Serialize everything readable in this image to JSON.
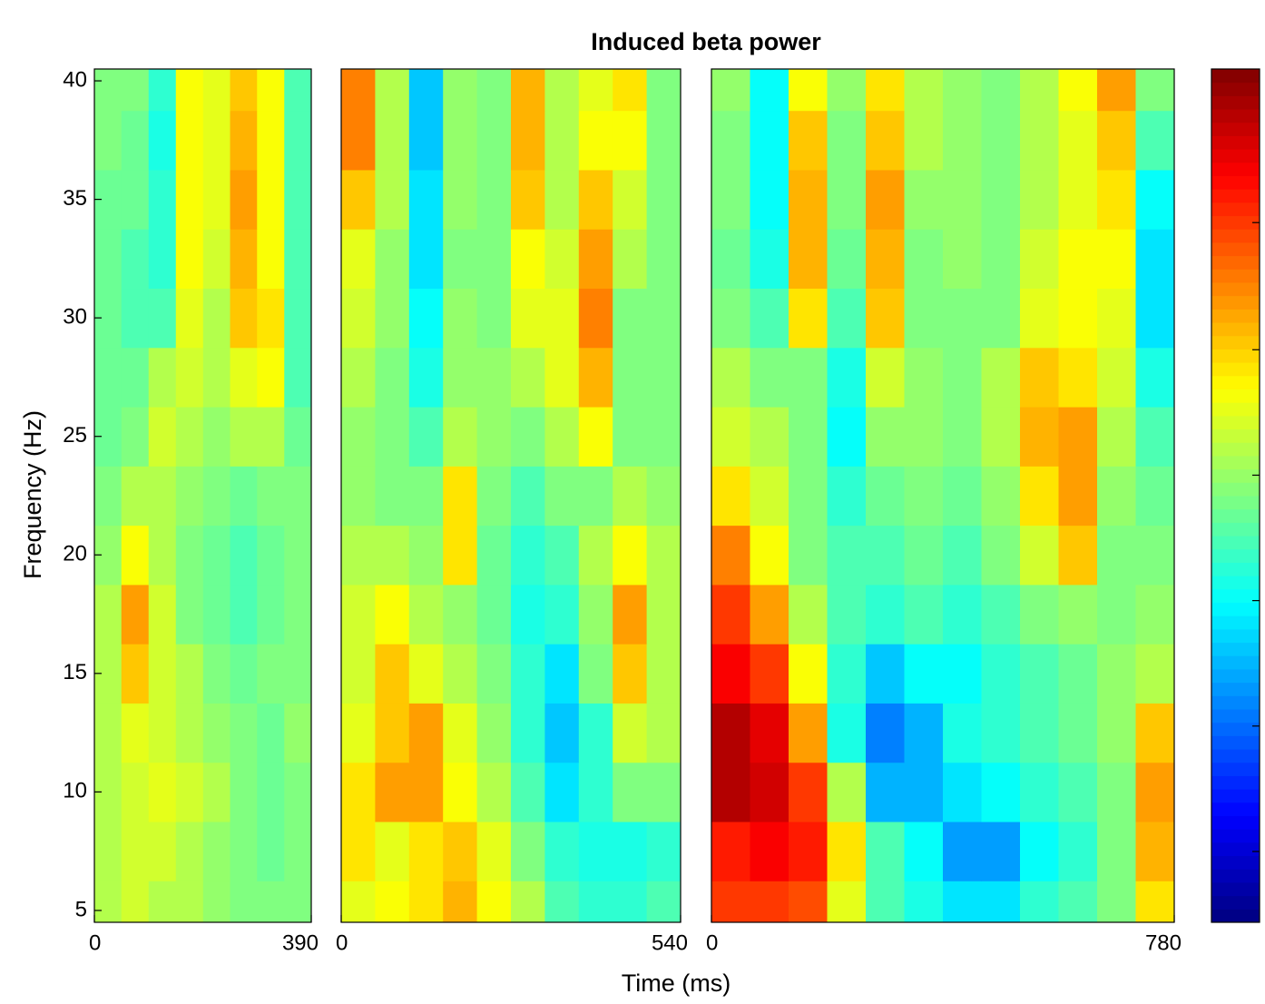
{
  "chart_data": {
    "type": "heatmap",
    "title": "Induced beta power",
    "xlabel": "Time (ms)",
    "ylabel": "Frequency (Hz)",
    "colormap": "jet",
    "zlim": [
      0,
      1
    ],
    "cticks": [
      0.083,
      0.23,
      0.377,
      0.524,
      0.671,
      0.82
    ],
    "ylim": [
      4.5,
      40.5
    ],
    "yticks": [
      5,
      10,
      15,
      20,
      25,
      30,
      35,
      40
    ],
    "y": [
      5,
      7.5,
      10,
      12.5,
      15,
      17.5,
      20,
      22.5,
      25,
      27.5,
      30,
      32.5,
      35,
      37.5,
      40
    ],
    "panels": [
      {
        "xlim": [
          0,
          390
        ],
        "xticks": [
          0,
          390
        ],
        "x": [
          24,
          73,
          122,
          171,
          220,
          268,
          317,
          366
        ],
        "z": [
          [
            0.55,
            0.58,
            0.55,
            0.55,
            0.52,
            0.5,
            0.5,
            0.5
          ],
          [
            0.55,
            0.58,
            0.58,
            0.55,
            0.52,
            0.5,
            0.48,
            0.5
          ],
          [
            0.55,
            0.58,
            0.6,
            0.58,
            0.55,
            0.5,
            0.48,
            0.5
          ],
          [
            0.55,
            0.6,
            0.58,
            0.55,
            0.52,
            0.5,
            0.48,
            0.52
          ],
          [
            0.55,
            0.68,
            0.58,
            0.55,
            0.5,
            0.48,
            0.5,
            0.5
          ],
          [
            0.55,
            0.72,
            0.58,
            0.5,
            0.48,
            0.45,
            0.48,
            0.5
          ],
          [
            0.52,
            0.62,
            0.55,
            0.5,
            0.48,
            0.45,
            0.48,
            0.5
          ],
          [
            0.5,
            0.55,
            0.55,
            0.52,
            0.5,
            0.48,
            0.5,
            0.5
          ],
          [
            0.48,
            0.5,
            0.58,
            0.55,
            0.52,
            0.55,
            0.55,
            0.48
          ],
          [
            0.48,
            0.48,
            0.55,
            0.58,
            0.55,
            0.6,
            0.62,
            0.45
          ],
          [
            0.48,
            0.45,
            0.45,
            0.6,
            0.55,
            0.68,
            0.65,
            0.45
          ],
          [
            0.48,
            0.45,
            0.42,
            0.62,
            0.58,
            0.7,
            0.62,
            0.45
          ],
          [
            0.48,
            0.48,
            0.42,
            0.62,
            0.6,
            0.72,
            0.62,
            0.45
          ],
          [
            0.5,
            0.48,
            0.4,
            0.62,
            0.6,
            0.7,
            0.62,
            0.45
          ],
          [
            0.5,
            0.5,
            0.42,
            0.62,
            0.6,
            0.68,
            0.62,
            0.45
          ]
        ]
      },
      {
        "xlim": [
          0,
          540
        ],
        "xticks": [
          0,
          540
        ],
        "x": [
          27,
          81,
          135,
          189,
          243,
          297,
          351,
          405,
          459,
          513
        ],
        "z": [
          [
            0.6,
            0.62,
            0.65,
            0.7,
            0.62,
            0.55,
            0.45,
            0.42,
            0.42,
            0.45
          ],
          [
            0.65,
            0.6,
            0.65,
            0.68,
            0.6,
            0.5,
            0.42,
            0.4,
            0.4,
            0.42
          ],
          [
            0.65,
            0.72,
            0.72,
            0.62,
            0.55,
            0.45,
            0.35,
            0.42,
            0.5,
            0.5
          ],
          [
            0.6,
            0.68,
            0.72,
            0.6,
            0.52,
            0.42,
            0.32,
            0.42,
            0.58,
            0.55
          ],
          [
            0.58,
            0.68,
            0.6,
            0.55,
            0.5,
            0.42,
            0.35,
            0.5,
            0.68,
            0.55
          ],
          [
            0.58,
            0.62,
            0.55,
            0.52,
            0.48,
            0.4,
            0.42,
            0.52,
            0.72,
            0.55
          ],
          [
            0.55,
            0.55,
            0.52,
            0.65,
            0.48,
            0.42,
            0.45,
            0.55,
            0.62,
            0.55
          ],
          [
            0.52,
            0.5,
            0.5,
            0.65,
            0.5,
            0.45,
            0.5,
            0.5,
            0.55,
            0.52
          ],
          [
            0.52,
            0.5,
            0.45,
            0.55,
            0.52,
            0.5,
            0.55,
            0.62,
            0.5,
            0.5
          ],
          [
            0.55,
            0.5,
            0.4,
            0.52,
            0.52,
            0.55,
            0.6,
            0.7,
            0.5,
            0.5
          ],
          [
            0.58,
            0.52,
            0.38,
            0.52,
            0.5,
            0.6,
            0.6,
            0.75,
            0.5,
            0.5
          ],
          [
            0.6,
            0.52,
            0.35,
            0.5,
            0.5,
            0.62,
            0.58,
            0.72,
            0.55,
            0.5
          ],
          [
            0.68,
            0.55,
            0.35,
            0.52,
            0.5,
            0.68,
            0.55,
            0.68,
            0.58,
            0.5
          ],
          [
            0.75,
            0.55,
            0.32,
            0.52,
            0.5,
            0.7,
            0.55,
            0.62,
            0.62,
            0.5
          ],
          [
            0.75,
            0.55,
            0.32,
            0.52,
            0.5,
            0.7,
            0.55,
            0.6,
            0.65,
            0.5
          ]
        ]
      },
      {
        "xlim": [
          0,
          780
        ],
        "xticks": [
          0,
          780
        ],
        "x": [
          32.5,
          97.5,
          162.5,
          227.5,
          292.5,
          357.5,
          422.5,
          487.5,
          552.5,
          617.5,
          682.5,
          747.5
        ],
        "z": [
          [
            0.82,
            0.82,
            0.8,
            0.6,
            0.45,
            0.4,
            0.35,
            0.35,
            0.42,
            0.45,
            0.5,
            0.65
          ],
          [
            0.85,
            0.88,
            0.85,
            0.65,
            0.45,
            0.38,
            0.28,
            0.28,
            0.38,
            0.42,
            0.5,
            0.7
          ],
          [
            0.95,
            0.92,
            0.82,
            0.55,
            0.3,
            0.3,
            0.35,
            0.38,
            0.42,
            0.45,
            0.5,
            0.72
          ],
          [
            0.95,
            0.9,
            0.72,
            0.4,
            0.25,
            0.3,
            0.4,
            0.42,
            0.45,
            0.48,
            0.52,
            0.68
          ],
          [
            0.88,
            0.82,
            0.62,
            0.42,
            0.32,
            0.38,
            0.38,
            0.42,
            0.45,
            0.48,
            0.52,
            0.55
          ],
          [
            0.82,
            0.72,
            0.55,
            0.45,
            0.42,
            0.45,
            0.42,
            0.45,
            0.5,
            0.52,
            0.5,
            0.52
          ],
          [
            0.75,
            0.62,
            0.5,
            0.45,
            0.45,
            0.48,
            0.45,
            0.5,
            0.58,
            0.68,
            0.5,
            0.5
          ],
          [
            0.65,
            0.58,
            0.5,
            0.42,
            0.48,
            0.5,
            0.48,
            0.52,
            0.65,
            0.72,
            0.52,
            0.48
          ],
          [
            0.58,
            0.55,
            0.5,
            0.38,
            0.52,
            0.52,
            0.5,
            0.55,
            0.7,
            0.72,
            0.55,
            0.45
          ],
          [
            0.55,
            0.5,
            0.5,
            0.4,
            0.58,
            0.52,
            0.5,
            0.55,
            0.68,
            0.65,
            0.58,
            0.4
          ],
          [
            0.5,
            0.45,
            0.65,
            0.45,
            0.68,
            0.5,
            0.5,
            0.5,
            0.6,
            0.62,
            0.6,
            0.35
          ],
          [
            0.48,
            0.4,
            0.7,
            0.48,
            0.7,
            0.5,
            0.52,
            0.5,
            0.58,
            0.62,
            0.62,
            0.35
          ],
          [
            0.5,
            0.38,
            0.7,
            0.5,
            0.72,
            0.52,
            0.52,
            0.5,
            0.55,
            0.6,
            0.65,
            0.38
          ],
          [
            0.5,
            0.38,
            0.68,
            0.5,
            0.68,
            0.55,
            0.52,
            0.5,
            0.55,
            0.6,
            0.68,
            0.45
          ],
          [
            0.52,
            0.38,
            0.62,
            0.52,
            0.65,
            0.55,
            0.52,
            0.5,
            0.55,
            0.62,
            0.72,
            0.5
          ]
        ]
      }
    ]
  }
}
